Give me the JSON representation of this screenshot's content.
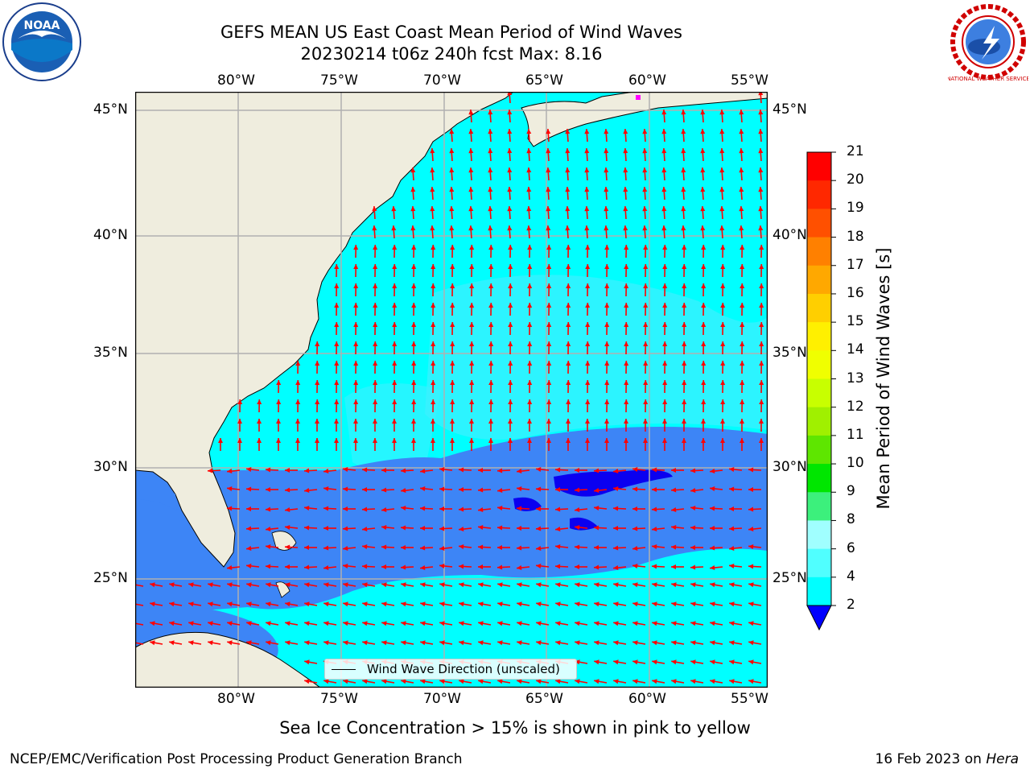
{
  "header": {
    "title_line1": "GEFS MEAN US East Coast Mean Period of Wind Waves",
    "title_line2": "20230214 t06z 240h fcst   Max: 8.16"
  },
  "map": {
    "lon_labels": [
      "80°W",
      "75°W",
      "70°W",
      "65°W",
      "60°W",
      "55°W"
    ],
    "lat_labels": [
      "45°N",
      "40°N",
      "35°N",
      "30°N",
      "25°N"
    ],
    "legend_label": "Wind Wave Direction (unscaled)",
    "colors": {
      "land": "#efedde",
      "ocean_light": "#00ffff",
      "ocean_mid": "#3ef0ff",
      "band_blue": "#3d85f6",
      "band_dark": "#0a00f0",
      "arrow": "#ff0000",
      "grid": "#b0b0b0"
    }
  },
  "colorbar": {
    "label": "Mean Period of Wind Waves [s]",
    "ticks": [
      "21",
      "20",
      "19",
      "18",
      "17",
      "16",
      "15",
      "14",
      "13",
      "12",
      "11",
      "10",
      "9",
      "8",
      "6",
      "4",
      "2"
    ],
    "colors": [
      "#ff0000",
      "#ff2800",
      "#ff5000",
      "#ff8000",
      "#ffa800",
      "#ffcf00",
      "#fff000",
      "#f0ff00",
      "#c8ff00",
      "#a0f000",
      "#5ee600",
      "#00e600",
      "#3cf07c",
      "#a0ffff",
      "#50ffff",
      "#00ffff",
      "#1e8cff"
    ],
    "extend_color": "#0000ff"
  },
  "footer": {
    "sea_ice_note": "Sea Ice Concentration > 15% is shown in pink to yellow",
    "credit": "NCEP/EMC/Verification Post Processing Product Generation Branch",
    "date_prefix": "16 Feb 2023 on",
    "date_host": "Hera"
  },
  "logos": {
    "noaa_text": "NOAA",
    "nws_text": "NATIONAL WEATHER SERVICE"
  }
}
